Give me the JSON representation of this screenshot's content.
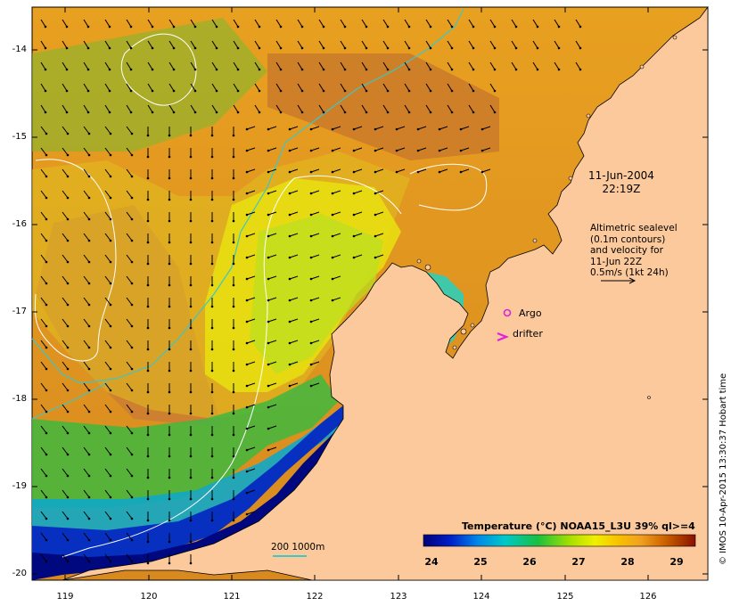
{
  "map": {
    "date_line1": "11-Jun-2004",
    "date_line2": "22:19Z",
    "altimetry_lines": [
      "Altimetric sealevel",
      "(0.1m contours)",
      "and velocity for",
      "11-Jun 22Z",
      "0.5m/s (1kt 24h)"
    ],
    "argo_label": "Argo",
    "drifter_label": "drifter",
    "depth_label": "200  1000m",
    "credit": "© IMOS 10-Apr-2015 13:30:37 Hobart time",
    "lat_labels": [
      "-14",
      "-15",
      "-16",
      "-17",
      "-18",
      "-19",
      "-20"
    ],
    "lon_labels": [
      "119",
      "120",
      "121",
      "122",
      "123",
      "124",
      "125",
      "126"
    ],
    "colorbar": {
      "title": "Temperature (°C) NOAA15_L3U 39% ql>=4",
      "ticks": [
        "24",
        "25",
        "26",
        "27",
        "28",
        "29"
      ]
    },
    "colors": {
      "land": "#fbc99b",
      "contour_200_1000": "#3fc6c6",
      "argo_marker": "#e020e0",
      "sealevel_contour": "#ffffff"
    }
  }
}
